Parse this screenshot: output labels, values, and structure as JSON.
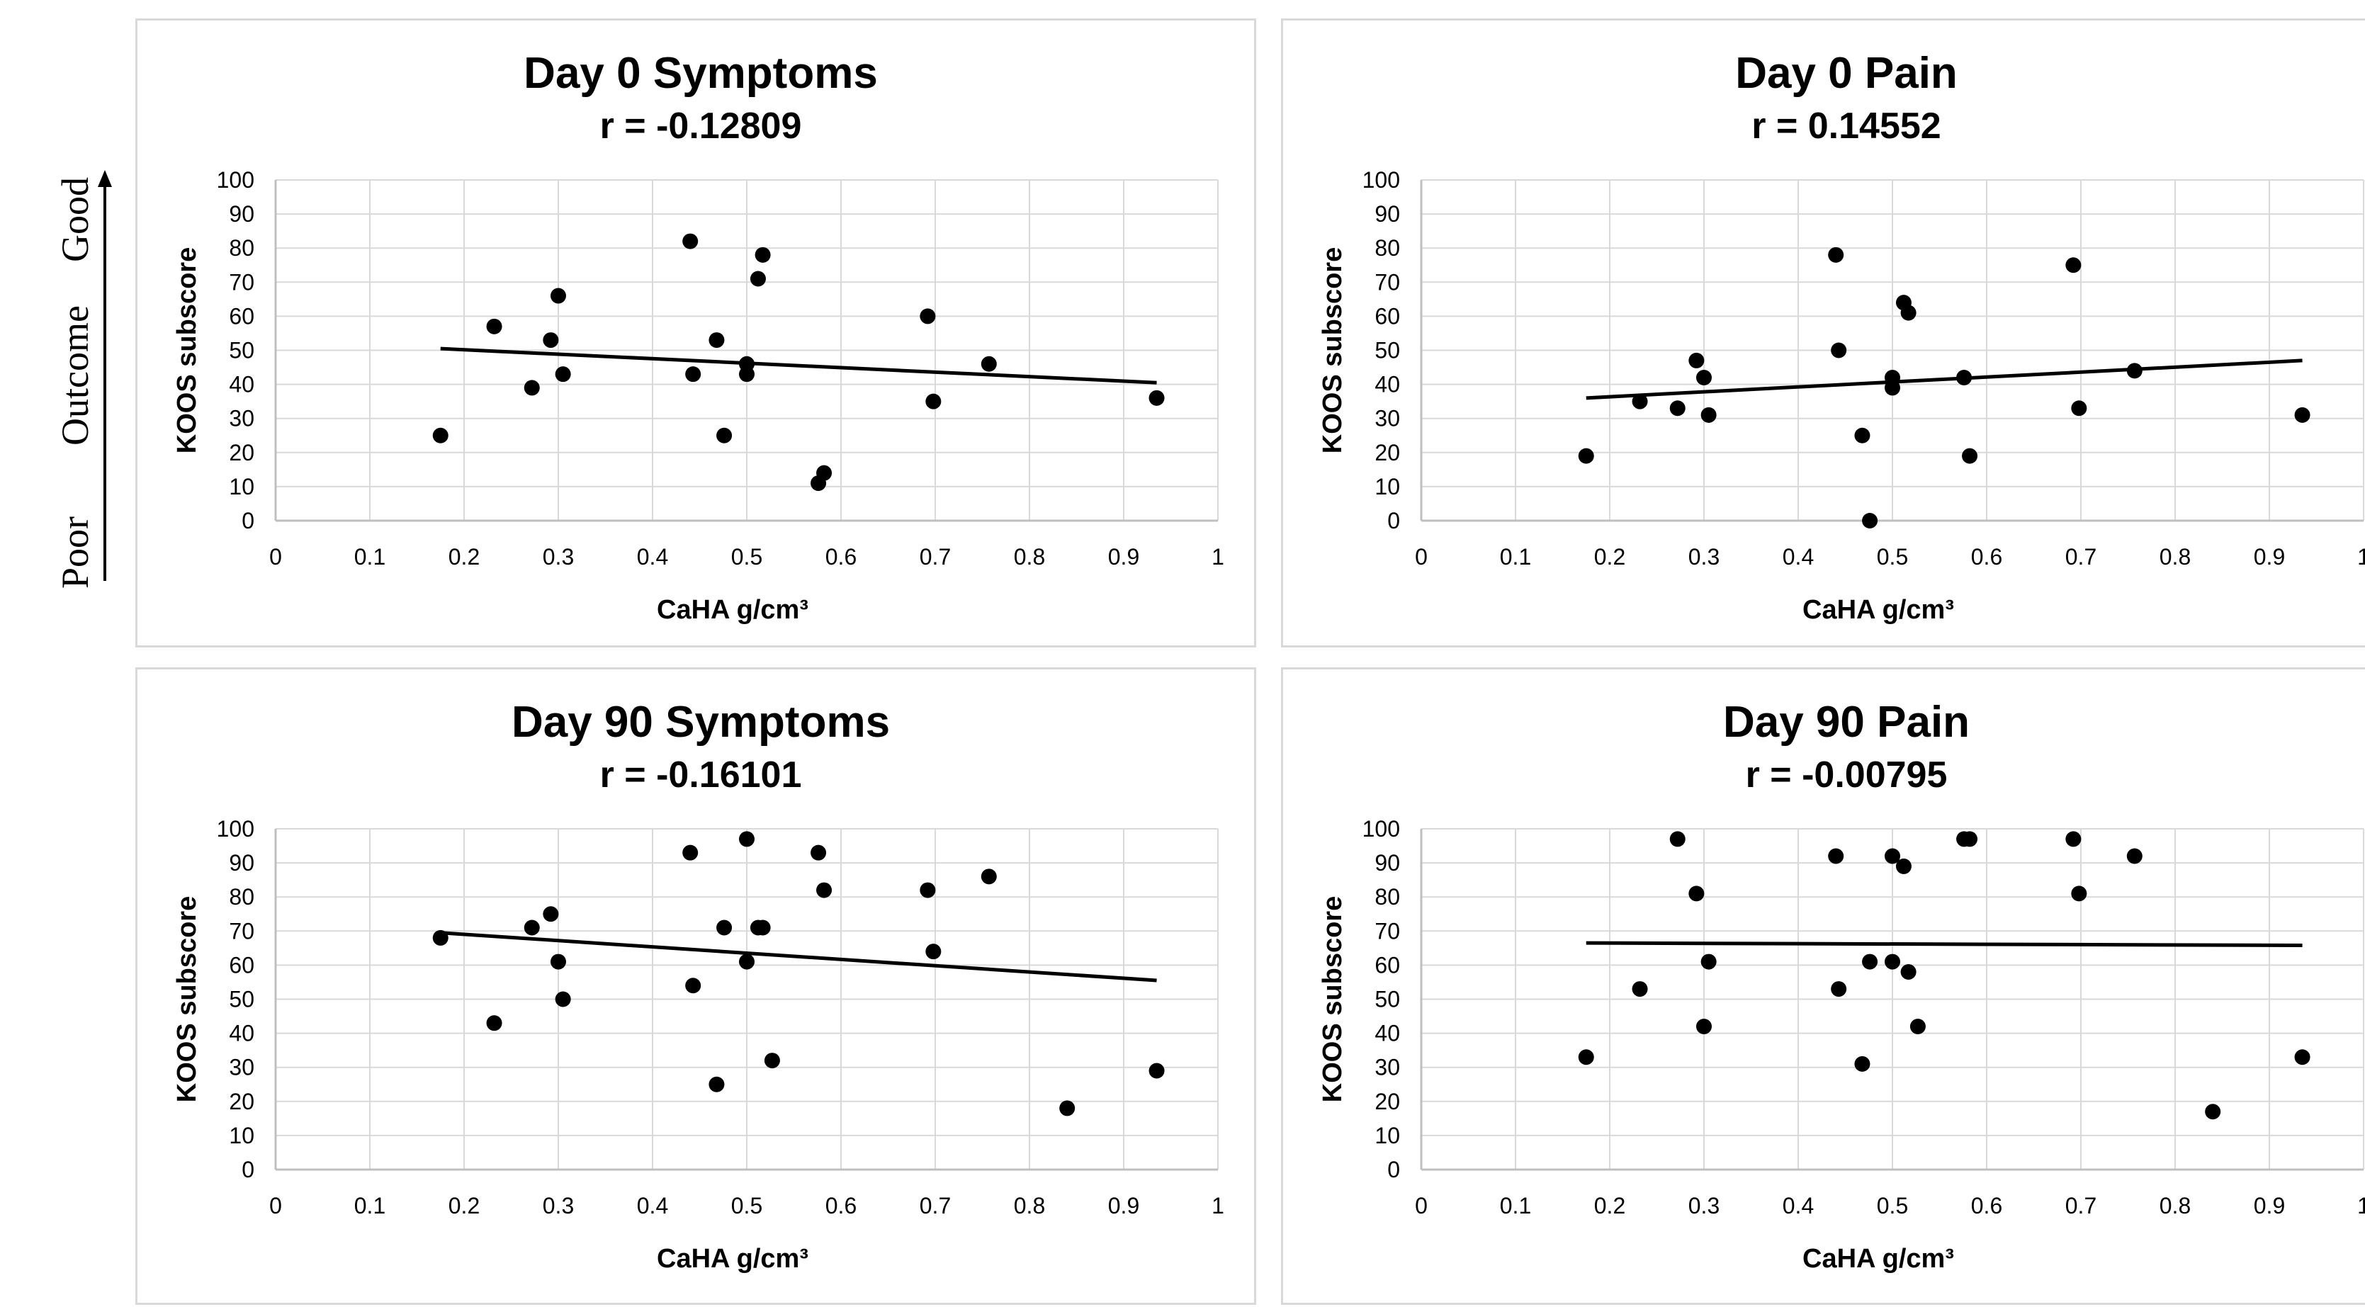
{
  "side_annotation": {
    "good": "Good",
    "outcome": "Outcome",
    "poor": "Poor"
  },
  "chart_data": [
    {
      "type": "scatter",
      "title": "Day 0 Symptoms",
      "subtitle": "r = -0.12809",
      "xlabel": "CaHA g/cm³",
      "ylabel": "KOOS subscore",
      "xlim": [
        0,
        1
      ],
      "ylim": [
        0,
        100
      ],
      "xticks": [
        "0",
        "0.1",
        "0.2",
        "0.3",
        "0.4",
        "0.5",
        "0.6",
        "0.7",
        "0.8",
        "0.9",
        "1"
      ],
      "yticks": [
        "0",
        "10",
        "20",
        "30",
        "40",
        "50",
        "60",
        "70",
        "80",
        "90",
        "100"
      ],
      "grid": true,
      "points": [
        [
          0.175,
          25
        ],
        [
          0.232,
          57
        ],
        [
          0.272,
          39
        ],
        [
          0.292,
          53
        ],
        [
          0.3,
          66
        ],
        [
          0.305,
          43
        ],
        [
          0.44,
          82
        ],
        [
          0.443,
          43
        ],
        [
          0.468,
          53
        ],
        [
          0.476,
          25
        ],
        [
          0.5,
          46
        ],
        [
          0.5,
          43
        ],
        [
          0.512,
          71
        ],
        [
          0.517,
          78
        ],
        [
          0.576,
          11
        ],
        [
          0.582,
          14
        ],
        [
          0.692,
          60
        ],
        [
          0.698,
          35
        ],
        [
          0.757,
          46
        ],
        [
          0.935,
          36
        ]
      ],
      "trendline": [
        [
          0.175,
          50.5
        ],
        [
          0.935,
          40.5
        ]
      ]
    },
    {
      "type": "scatter",
      "title": "Day 0 Pain",
      "subtitle": "r = 0.14552",
      "xlabel": "CaHA g/cm³",
      "ylabel": "KOOS subscore",
      "xlim": [
        0,
        1
      ],
      "ylim": [
        0,
        100
      ],
      "xticks": [
        "0",
        "0.1",
        "0.2",
        "0.3",
        "0.4",
        "0.5",
        "0.6",
        "0.7",
        "0.8",
        "0.9",
        "1"
      ],
      "yticks": [
        "0",
        "10",
        "20",
        "30",
        "40",
        "50",
        "60",
        "70",
        "80",
        "90",
        "100"
      ],
      "grid": true,
      "points": [
        [
          0.175,
          19
        ],
        [
          0.232,
          35
        ],
        [
          0.272,
          33
        ],
        [
          0.292,
          47
        ],
        [
          0.3,
          42
        ],
        [
          0.305,
          31
        ],
        [
          0.44,
          78
        ],
        [
          0.443,
          50
        ],
        [
          0.468,
          25
        ],
        [
          0.476,
          0
        ],
        [
          0.5,
          42
        ],
        [
          0.5,
          39
        ],
        [
          0.512,
          64
        ],
        [
          0.517,
          61
        ],
        [
          0.576,
          42
        ],
        [
          0.582,
          19
        ],
        [
          0.692,
          75
        ],
        [
          0.698,
          33
        ],
        [
          0.757,
          44
        ],
        [
          0.935,
          31
        ]
      ],
      "trendline": [
        [
          0.175,
          36
        ],
        [
          0.935,
          47
        ]
      ]
    },
    {
      "type": "scatter",
      "title": "Day 90 Symptoms",
      "subtitle": "r = -0.16101",
      "xlabel": "CaHA g/cm³",
      "ylabel": "KOOS subscore",
      "xlim": [
        0,
        1
      ],
      "ylim": [
        0,
        100
      ],
      "xticks": [
        "0",
        "0.1",
        "0.2",
        "0.3",
        "0.4",
        "0.5",
        "0.6",
        "0.7",
        "0.8",
        "0.9",
        "1"
      ],
      "yticks": [
        "0",
        "10",
        "20",
        "30",
        "40",
        "50",
        "60",
        "70",
        "80",
        "90",
        "100"
      ],
      "grid": true,
      "points": [
        [
          0.175,
          68
        ],
        [
          0.232,
          43
        ],
        [
          0.272,
          71
        ],
        [
          0.292,
          75
        ],
        [
          0.3,
          61
        ],
        [
          0.305,
          50
        ],
        [
          0.44,
          93
        ],
        [
          0.443,
          54
        ],
        [
          0.468,
          25
        ],
        [
          0.476,
          71
        ],
        [
          0.5,
          97
        ],
        [
          0.5,
          61
        ],
        [
          0.512,
          71
        ],
        [
          0.517,
          71
        ],
        [
          0.527,
          32
        ],
        [
          0.576,
          93
        ],
        [
          0.582,
          82
        ],
        [
          0.692,
          82
        ],
        [
          0.698,
          64
        ],
        [
          0.757,
          86
        ],
        [
          0.84,
          18
        ],
        [
          0.935,
          29
        ]
      ],
      "trendline": [
        [
          0.175,
          69.5
        ],
        [
          0.935,
          55.5
        ]
      ]
    },
    {
      "type": "scatter",
      "title": "Day 90 Pain",
      "subtitle": "r = -0.00795",
      "xlabel": "CaHA g/cm³",
      "ylabel": "KOOS subscore",
      "xlim": [
        0,
        1
      ],
      "ylim": [
        0,
        100
      ],
      "xticks": [
        "0",
        "0.1",
        "0.2",
        "0.3",
        "0.4",
        "0.5",
        "0.6",
        "0.7",
        "0.8",
        "0.9",
        "1"
      ],
      "yticks": [
        "0",
        "10",
        "20",
        "30",
        "40",
        "50",
        "60",
        "70",
        "80",
        "90",
        "100"
      ],
      "grid": true,
      "points": [
        [
          0.175,
          33
        ],
        [
          0.232,
          53
        ],
        [
          0.272,
          97
        ],
        [
          0.292,
          81
        ],
        [
          0.3,
          42
        ],
        [
          0.305,
          61
        ],
        [
          0.44,
          92
        ],
        [
          0.443,
          53
        ],
        [
          0.468,
          31
        ],
        [
          0.476,
          61
        ],
        [
          0.5,
          92
        ],
        [
          0.5,
          61
        ],
        [
          0.512,
          89
        ],
        [
          0.517,
          58
        ],
        [
          0.527,
          42
        ],
        [
          0.576,
          97
        ],
        [
          0.582,
          97
        ],
        [
          0.692,
          97
        ],
        [
          0.698,
          81
        ],
        [
          0.757,
          92
        ],
        [
          0.84,
          17
        ],
        [
          0.935,
          33
        ]
      ],
      "trendline": [
        [
          0.175,
          66.5
        ],
        [
          0.935,
          65.8
        ]
      ]
    }
  ]
}
